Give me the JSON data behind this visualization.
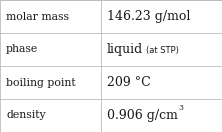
{
  "rows": [
    {
      "label": "molar mass",
      "value": "146.23 g/mol",
      "value_sup": null,
      "value_small": null
    },
    {
      "label": "phase",
      "value": "liquid",
      "value_small": "(at STP)",
      "value_sup": null
    },
    {
      "label": "boiling point",
      "value": "209 °C",
      "value_sup": null,
      "value_small": null
    },
    {
      "label": "density",
      "value": "0.906 g/cm",
      "value_sup": "3",
      "value_small": null
    }
  ],
  "col_split": 0.455,
  "bg_color": "#ffffff",
  "line_color": "#bbbbbb",
  "label_fontsize": 7.8,
  "value_fontsize": 9.0,
  "small_fontsize": 6.0,
  "sup_fontsize": 5.5,
  "font_color": "#1a1a1a"
}
